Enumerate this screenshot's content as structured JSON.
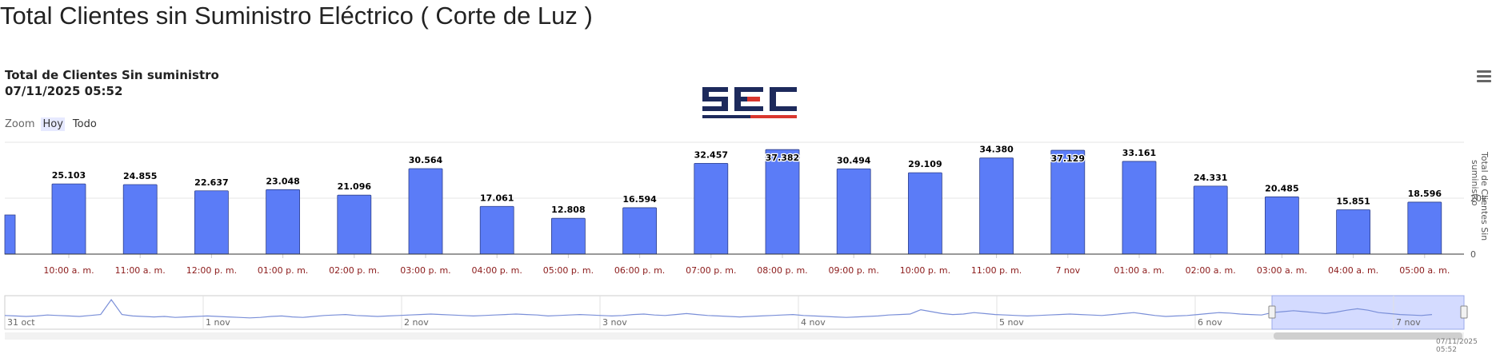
{
  "page_title": "Total Clientes sin Suministro Eléctrico ( Corte de Luz )",
  "chart_title_line1": "Total de Clientes Sin suministro",
  "chart_title_line2": "07/11/2025 05:52",
  "zoom": {
    "label": "Zoom",
    "buttons": [
      "Hoy",
      "Todo"
    ],
    "active": "Hoy"
  },
  "logo_text": "SEC",
  "footer_timestamp": "07/11/2025 05:52",
  "colors": {
    "bar": "#5b7cf7",
    "bar_border": "#30418a",
    "x_label": "#8b1a1a",
    "navigator_fill": "#d4dbff",
    "logo_blue": "#1d2a5c",
    "logo_red": "#d9372e"
  },
  "chart_data": {
    "type": "bar",
    "title": "Total de Clientes Sin suministro",
    "subtitle": "07/11/2025 05:52",
    "xlabel": "",
    "ylabel": "Total de Clientes Sin suministro",
    "ylim": [
      0,
      40000
    ],
    "y_ticks": [
      0,
      20000
    ],
    "y_tick_labels": [
      "0",
      "20k"
    ],
    "grid": true,
    "partial_first_bar": 14000,
    "categories": [
      "10:00 a. m.",
      "11:00 a. m.",
      "12:00 p. m.",
      "01:00 p. m.",
      "02:00 p. m.",
      "03:00 p. m.",
      "04:00 p. m.",
      "05:00 p. m.",
      "06:00 p. m.",
      "07:00 p. m.",
      "08:00 p. m.",
      "09:00 p. m.",
      "10:00 p. m.",
      "11:00 p. m.",
      "7 nov",
      "01:00 a. m.",
      "02:00 a. m.",
      "03:00 a. m.",
      "04:00 a. m.",
      "05:00 a. m."
    ],
    "values": [
      25103,
      24855,
      22637,
      23048,
      21096,
      30564,
      17061,
      12808,
      16594,
      32457,
      37382,
      30494,
      29109,
      34380,
      37129,
      33161,
      24331,
      20485,
      15851,
      18596
    ],
    "data_labels": [
      "25.103",
      "24.855",
      "22.637",
      "23.048",
      "21.096",
      "30.564",
      "17.061",
      "12.808",
      "16.594",
      "32.457",
      "37.382",
      "30.494",
      "29.109",
      "34.380",
      "37.129",
      "33.161",
      "24.331",
      "20.485",
      "15.851",
      "18.596"
    ],
    "labels_inside": [
      10,
      14
    ],
    "navigator": {
      "labels": [
        "31 oct",
        "1 nov",
        "2 nov",
        "3 nov",
        "4 nov",
        "5 nov",
        "6 nov",
        "7 nov"
      ],
      "series": [
        22,
        21,
        20,
        21,
        23,
        22,
        21,
        20,
        22,
        24,
        55,
        24,
        21,
        20,
        19,
        20,
        18,
        19,
        20,
        21,
        20,
        19,
        18,
        17,
        18,
        20,
        21,
        19,
        18,
        20,
        22,
        23,
        24,
        22,
        21,
        20,
        21,
        22,
        23,
        24,
        25,
        24,
        23,
        22,
        21,
        22,
        23,
        24,
        25,
        24,
        23,
        21,
        22,
        23,
        24,
        23,
        22,
        21,
        22,
        24,
        25,
        23,
        22,
        24,
        26,
        24,
        22,
        21,
        20,
        19,
        20,
        21,
        22,
        23,
        24,
        22,
        21,
        20,
        19,
        18,
        19,
        20,
        21,
        23,
        24,
        25,
        34,
        30,
        26,
        24,
        25,
        28,
        26,
        24,
        23,
        22,
        21,
        22,
        23,
        24,
        25,
        24,
        23,
        22,
        24,
        26,
        28,
        25,
        22,
        20,
        21,
        22,
        24,
        26,
        28,
        27,
        25,
        24,
        23,
        28,
        30,
        32,
        30,
        28,
        26,
        29,
        33,
        36,
        33,
        28,
        26,
        24,
        23,
        22,
        24
      ]
    }
  }
}
